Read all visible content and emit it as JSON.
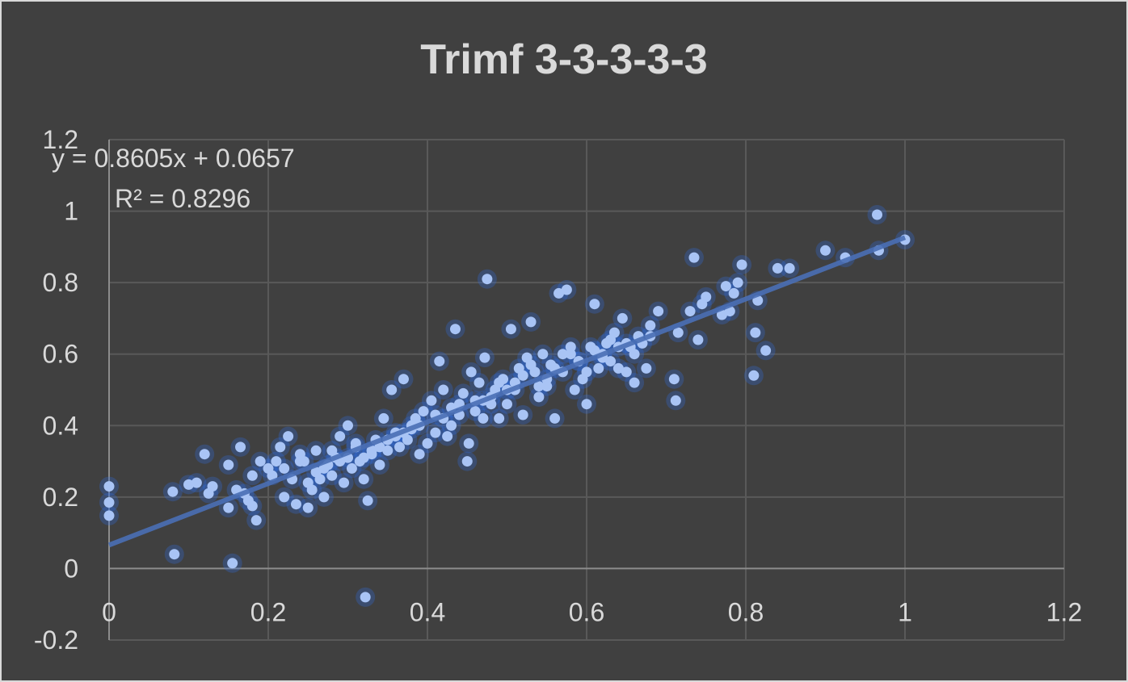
{
  "chart_data": {
    "type": "scatter",
    "title": "Trimf 3-3-3-3-3",
    "xlabel": "",
    "ylabel": "",
    "xlim": [
      0,
      1.2
    ],
    "ylim": [
      -0.2,
      1.2
    ],
    "x_ticks": [
      "0",
      "0.2",
      "0.4",
      "0.6",
      "0.8",
      "1",
      "1.2"
    ],
    "y_ticks": [
      "-0.2",
      "0",
      "0.2",
      "0.4",
      "0.6",
      "0.8",
      "1",
      "1.2"
    ],
    "grid": true,
    "legend": "none",
    "colors": {
      "background": "#404040",
      "point": "#a9c4f5",
      "glow": "#2f6fe8",
      "trendline": "#4a6fb5",
      "grid": "#595959",
      "text": "#d9d9d9"
    },
    "trendline": {
      "type": "linear",
      "slope": 0.8605,
      "intercept": 0.0657,
      "equation": "y = 0.8605x + 0.0657",
      "r_squared": "R² = 0.8296"
    },
    "series": [
      {
        "x": [
          0.0,
          0.0,
          0.0,
          0.082,
          0.08,
          0.1,
          0.11,
          0.12,
          0.125,
          0.13,
          0.15,
          0.15,
          0.155,
          0.16,
          0.165,
          0.17,
          0.175,
          0.18,
          0.18,
          0.185,
          0.19,
          0.2,
          0.205,
          0.21,
          0.215,
          0.22,
          0.225,
          0.23,
          0.235,
          0.24,
          0.245,
          0.25,
          0.255,
          0.26,
          0.265,
          0.27,
          0.275,
          0.28,
          0.285,
          0.29,
          0.295,
          0.3,
          0.305,
          0.31,
          0.315,
          0.32,
          0.322,
          0.325,
          0.33,
          0.335,
          0.34,
          0.345,
          0.35,
          0.355,
          0.36,
          0.365,
          0.37,
          0.375,
          0.38,
          0.385,
          0.39,
          0.395,
          0.4,
          0.405,
          0.41,
          0.415,
          0.42,
          0.425,
          0.43,
          0.435,
          0.44,
          0.445,
          0.45,
          0.452,
          0.455,
          0.46,
          0.465,
          0.47,
          0.472,
          0.475,
          0.48,
          0.485,
          0.49,
          0.495,
          0.5,
          0.505,
          0.51,
          0.515,
          0.52,
          0.525,
          0.53,
          0.535,
          0.54,
          0.545,
          0.55,
          0.555,
          0.56,
          0.565,
          0.57,
          0.575,
          0.58,
          0.585,
          0.59,
          0.595,
          0.6,
          0.605,
          0.61,
          0.615,
          0.62,
          0.625,
          0.63,
          0.635,
          0.64,
          0.645,
          0.65,
          0.655,
          0.66,
          0.665,
          0.67,
          0.675,
          0.68,
          0.69,
          0.71,
          0.712,
          0.715,
          0.73,
          0.735,
          0.74,
          0.745,
          0.75,
          0.77,
          0.775,
          0.78,
          0.785,
          0.79,
          0.795,
          0.81,
          0.812,
          0.815,
          0.825,
          0.84,
          0.855,
          0.9,
          0.925,
          0.965,
          0.967,
          1.0,
          0.22,
          0.24,
          0.26,
          0.28,
          0.3,
          0.31,
          0.33,
          0.35,
          0.37,
          0.39,
          0.42,
          0.44,
          0.46,
          0.48,
          0.5,
          0.52,
          0.54,
          0.56,
          0.58,
          0.6,
          0.62,
          0.64,
          0.66,
          0.68,
          0.25,
          0.27,
          0.29,
          0.32,
          0.34,
          0.36,
          0.38,
          0.41,
          0.43,
          0.47,
          0.49,
          0.51,
          0.53,
          0.55,
          0.57,
          0.59,
          0.61,
          0.63,
          0.65
        ],
        "y": [
          0.23,
          0.185,
          0.148,
          0.04,
          0.215,
          0.235,
          0.24,
          0.32,
          0.21,
          0.23,
          0.17,
          0.29,
          0.015,
          0.22,
          0.34,
          0.21,
          0.19,
          0.175,
          0.26,
          0.135,
          0.3,
          0.28,
          0.26,
          0.3,
          0.34,
          0.2,
          0.37,
          0.25,
          0.18,
          0.32,
          0.3,
          0.17,
          0.22,
          0.33,
          0.25,
          0.2,
          0.29,
          0.26,
          0.31,
          0.37,
          0.24,
          0.4,
          0.28,
          0.34,
          0.3,
          0.25,
          -0.08,
          0.19,
          0.32,
          0.36,
          0.29,
          0.42,
          0.33,
          0.5,
          0.38,
          0.34,
          0.53,
          0.36,
          0.4,
          0.42,
          0.32,
          0.44,
          0.35,
          0.47,
          0.38,
          0.58,
          0.5,
          0.37,
          0.4,
          0.67,
          0.43,
          0.49,
          0.3,
          0.35,
          0.55,
          0.47,
          0.52,
          0.42,
          0.59,
          0.81,
          0.46,
          0.5,
          0.42,
          0.53,
          0.46,
          0.67,
          0.52,
          0.56,
          0.43,
          0.59,
          0.69,
          0.55,
          0.48,
          0.6,
          0.51,
          0.57,
          0.42,
          0.77,
          0.55,
          0.78,
          0.62,
          0.5,
          0.58,
          0.53,
          0.46,
          0.62,
          0.74,
          0.56,
          0.6,
          0.63,
          0.58,
          0.66,
          0.56,
          0.7,
          0.55,
          0.62,
          0.52,
          0.65,
          0.63,
          0.56,
          0.68,
          0.72,
          0.53,
          0.47,
          0.66,
          0.72,
          0.87,
          0.64,
          0.74,
          0.76,
          0.71,
          0.79,
          0.72,
          0.77,
          0.8,
          0.85,
          0.54,
          0.66,
          0.75,
          0.61,
          0.84,
          0.84,
          0.89,
          0.87,
          0.99,
          0.89,
          0.92,
          0.28,
          0.3,
          0.27,
          0.33,
          0.31,
          0.35,
          0.33,
          0.36,
          0.38,
          0.4,
          0.42,
          0.46,
          0.44,
          0.48,
          0.5,
          0.54,
          0.51,
          0.56,
          0.6,
          0.55,
          0.59,
          0.62,
          0.6,
          0.65,
          0.24,
          0.28,
          0.3,
          0.31,
          0.34,
          0.37,
          0.39,
          0.43,
          0.45,
          0.47,
          0.52,
          0.5,
          0.57,
          0.53,
          0.6,
          0.58,
          0.61,
          0.64,
          0.63
        ]
      }
    ]
  }
}
